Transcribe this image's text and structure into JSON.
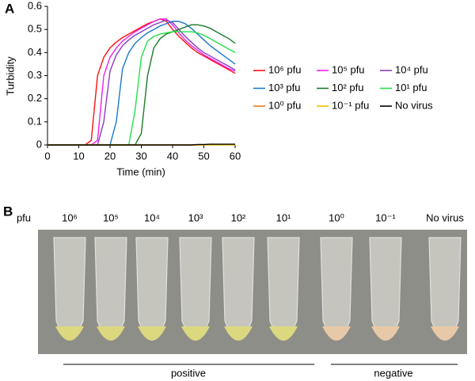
{
  "panel_labels": [
    "A",
    "B"
  ],
  "chart_data": {
    "type": "line",
    "xlabel": "Time (min)",
    "ylabel": "Turbidity",
    "x": [
      0,
      2,
      4,
      6,
      8,
      10,
      12,
      14,
      16,
      18,
      20,
      22,
      24,
      26,
      28,
      30,
      32,
      34,
      36,
      38,
      40,
      42,
      44,
      46,
      48,
      50,
      52,
      54,
      56,
      58,
      60
    ],
    "xlim": [
      0,
      60
    ],
    "xticks": [
      0,
      10,
      20,
      30,
      40,
      50,
      60
    ],
    "ylim": [
      0,
      0.6
    ],
    "yticks": [
      0,
      0.1,
      0.2,
      0.3,
      0.4,
      0.5,
      0.6
    ],
    "series": [
      {
        "name": "10⁶ pfu",
        "color": "#ff1010",
        "values": [
          0,
          0,
          0,
          0,
          0,
          0,
          0,
          0.02,
          0.3,
          0.38,
          0.42,
          0.445,
          0.465,
          0.48,
          0.495,
          0.51,
          0.525,
          0.535,
          0.545,
          0.535,
          0.5,
          0.47,
          0.445,
          0.42,
          0.4,
          0.385,
          0.37,
          0.355,
          0.34,
          0.325,
          0.31
        ]
      },
      {
        "name": "10⁵ pfu",
        "color": "#ee20ee",
        "values": [
          0,
          0,
          0,
          0,
          0,
          0,
          0,
          0,
          0.02,
          0.3,
          0.38,
          0.42,
          0.45,
          0.47,
          0.49,
          0.505,
          0.52,
          0.535,
          0.545,
          0.545,
          0.52,
          0.485,
          0.455,
          0.43,
          0.41,
          0.39,
          0.375,
          0.36,
          0.345,
          0.33,
          0.32
        ]
      },
      {
        "name": "10⁴ pfu",
        "color": "#8a3cc0",
        "values": [
          0,
          0,
          0,
          0,
          0,
          0,
          0,
          0,
          0,
          0.1,
          0.32,
          0.39,
          0.43,
          0.455,
          0.475,
          0.49,
          0.505,
          0.52,
          0.53,
          0.54,
          0.53,
          0.5,
          0.47,
          0.445,
          0.42,
          0.4,
          0.385,
          0.37,
          0.355,
          0.34,
          0.325
        ]
      },
      {
        "name": "10³ pfu",
        "color": "#1a78c8",
        "values": [
          0,
          0,
          0,
          0,
          0,
          0,
          0,
          0,
          0,
          0,
          0,
          0.1,
          0.33,
          0.4,
          0.44,
          0.465,
          0.485,
          0.5,
          0.515,
          0.525,
          0.535,
          0.535,
          0.525,
          0.505,
          0.48,
          0.455,
          0.43,
          0.41,
          0.39,
          0.37,
          0.35
        ]
      },
      {
        "name": "10² pfu",
        "color": "#1c7a2a",
        "values": [
          0,
          0,
          0,
          0,
          0,
          0,
          0,
          0,
          0,
          0,
          0,
          0,
          0,
          0,
          0,
          0.05,
          0.3,
          0.42,
          0.46,
          0.48,
          0.49,
          0.5,
          0.51,
          0.52,
          0.52,
          0.515,
          0.505,
          0.49,
          0.475,
          0.46,
          0.44
        ]
      },
      {
        "name": "10¹ pfu",
        "color": "#22e04a",
        "values": [
          0,
          0,
          0,
          0,
          0,
          0,
          0,
          0,
          0,
          0,
          0,
          0,
          0,
          0,
          0.15,
          0.38,
          0.45,
          0.47,
          0.48,
          0.485,
          0.49,
          0.49,
          0.49,
          0.49,
          0.485,
          0.475,
          0.46,
          0.445,
          0.43,
          0.415,
          0.4
        ]
      },
      {
        "name": "10⁰ pfu",
        "color": "#f07818",
        "values": [
          0,
          0,
          0,
          0,
          0,
          0,
          0,
          0,
          0,
          0,
          0,
          0,
          0,
          0,
          0,
          0,
          0,
          0,
          0,
          0,
          0,
          0,
          0,
          0,
          0,
          0,
          0.002,
          0.002,
          0.002,
          0.002,
          0.002
        ]
      },
      {
        "name": "10⁻¹ pfu",
        "color": "#f0c000",
        "values": [
          0,
          0,
          0,
          0,
          0,
          0,
          0,
          0,
          0,
          0,
          0,
          0,
          0,
          0,
          0,
          0,
          0,
          0,
          0,
          0,
          0,
          0,
          0,
          0,
          0,
          0,
          0,
          0,
          0,
          0,
          0
        ]
      },
      {
        "name": "No virus",
        "color": "#000000",
        "values": [
          0,
          0,
          0,
          0,
          0,
          0,
          0,
          0,
          0,
          0,
          0,
          0,
          0,
          0,
          0,
          0,
          0,
          0,
          0,
          0,
          0,
          0,
          0,
          0,
          0.002,
          0.002,
          0.003,
          0.003,
          0.003,
          0.003,
          0.003
        ]
      }
    ]
  },
  "photo": {
    "row_label": "pfu",
    "tube_labels": [
      "10⁶",
      "10⁵",
      "10⁴",
      "10³",
      "10²",
      "10¹",
      "10⁰",
      "10⁻¹",
      "No virus"
    ],
    "groups": [
      "positive",
      "negative"
    ]
  }
}
